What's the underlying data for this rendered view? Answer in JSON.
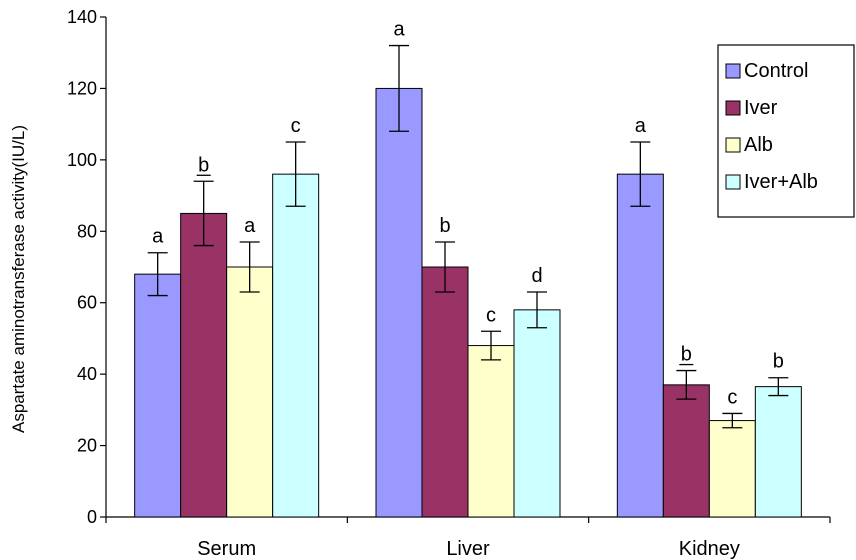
{
  "chart_data": {
    "type": "bar",
    "ylabel": "Aspartate aminotransferase activity(IU/L)",
    "xlabel": "",
    "ylim": [
      0,
      140
    ],
    "yticks": [
      0,
      20,
      40,
      60,
      80,
      100,
      120,
      140
    ],
    "categories": [
      "Serum",
      "Liver",
      "Kidney"
    ],
    "series": [
      {
        "name": "Control",
        "color": "#9999ff",
        "values": [
          68,
          120,
          96
        ],
        "errors": [
          6,
          12,
          9
        ],
        "labels": [
          "a",
          "a",
          "a"
        ]
      },
      {
        "name": "Iver",
        "color": "#993366",
        "values": [
          85,
          70,
          37
        ],
        "errors": [
          9,
          7,
          4
        ],
        "labels": [
          "b",
          "b",
          "b"
        ]
      },
      {
        "name": "Alb",
        "color": "#ffffcc",
        "values": [
          70,
          48,
          27
        ],
        "errors": [
          7,
          4,
          2
        ],
        "labels": [
          "a",
          "c",
          "c"
        ]
      },
      {
        "name": "Iver+Alb",
        "color": "#ccffff",
        "values": [
          96,
          58,
          36.5
        ],
        "errors": [
          9,
          5,
          2.5
        ],
        "labels": [
          "c",
          "d",
          "b"
        ]
      }
    ],
    "underlined_labels": [
      [
        1,
        0
      ],
      [
        1,
        2
      ]
    ],
    "legend_position": "top-right",
    "grid": false
  }
}
